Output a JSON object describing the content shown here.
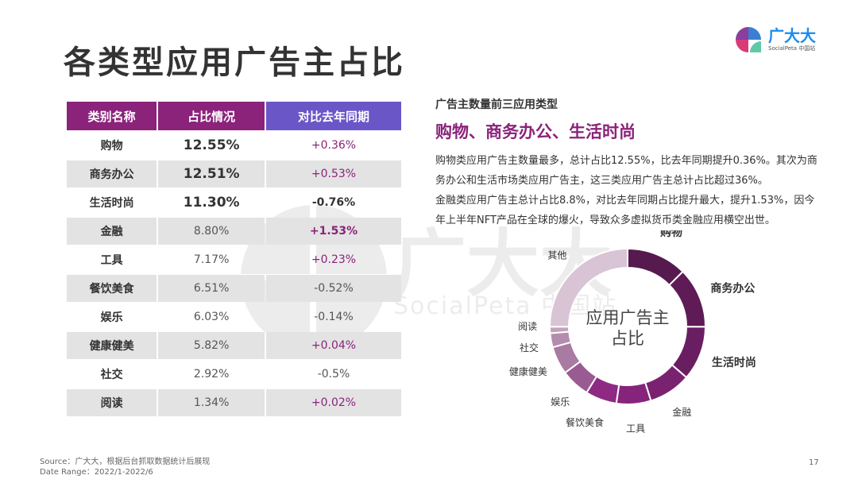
{
  "title": "各类型应用广告主占比",
  "logo": {
    "main": "广大大",
    "sub": "SocialPeta 中国站"
  },
  "watermark": {
    "main": "广大大",
    "sub": "SocialPeta 中国站"
  },
  "table": {
    "headers": [
      "类别名称",
      "占比情况",
      "对比去年同期"
    ],
    "rows": [
      {
        "name": "购物",
        "share": "12.55%",
        "change": "+0.36%"
      },
      {
        "name": "商务办公",
        "share": "12.51%",
        "change": "+0.53%"
      },
      {
        "name": "生活时尚",
        "share": "11.30%",
        "change": "-0.76%"
      },
      {
        "name": "金融",
        "share": "8.80%",
        "change": "+1.53%"
      },
      {
        "name": "工具",
        "share": "7.17%",
        "change": "+0.23%"
      },
      {
        "name": "餐饮美食",
        "share": "6.51%",
        "change": "-0.52%"
      },
      {
        "name": "娱乐",
        "share": "6.03%",
        "change": "-0.14%"
      },
      {
        "name": "健康健美",
        "share": "5.82%",
        "change": "+0.04%"
      },
      {
        "name": "社交",
        "share": "2.92%",
        "change": "-0.5%"
      },
      {
        "name": "阅读",
        "share": "1.34%",
        "change": "+0.02%"
      }
    ]
  },
  "insight": {
    "label": "广告主数量前三应用类型",
    "headline": "购物、商务办公、生活时尚",
    "lines": [
      "购物类应用广告主数量最多，总计占比12.55%，比去年同期提升0.36%。其次为商务办公和生活市场类应用广告主，这三类应用广告主总计占比超过36%。",
      "金融类应用广告主总计占比8.8%，对比去年同期占比提升最大，提升1.53%，因今年上半年NFT产品在全球的爆火，导致众多虚拟货币类金融应用横空出世。"
    ]
  },
  "chart_data": {
    "type": "pie",
    "donut": true,
    "center_label": "应用广告主\n占比",
    "categories": [
      "购物",
      "商务办公",
      "生活时尚",
      "金融",
      "工具",
      "餐饮美食",
      "娱乐",
      "健康健美",
      "社交",
      "阅读",
      "其他"
    ],
    "values": [
      12.55,
      12.51,
      11.3,
      8.8,
      7.17,
      6.51,
      6.03,
      5.82,
      2.92,
      1.34,
      25.05
    ],
    "colors": [
      "#561a4e",
      "#5e1b56",
      "#6a1e62",
      "#7a226f",
      "#86247c",
      "#8e2a84",
      "#9a5a92",
      "#a97aa2",
      "#b48cae",
      "#c2a2bd",
      "#d8c4d4"
    ],
    "bold_labels": [
      "购物",
      "商务办公",
      "生活时尚"
    ]
  },
  "footer": {
    "source": "Source：广大大，根据后台抓取数据统计后展现",
    "range": "Date Range：2022/1-2022/6",
    "page": "17"
  }
}
